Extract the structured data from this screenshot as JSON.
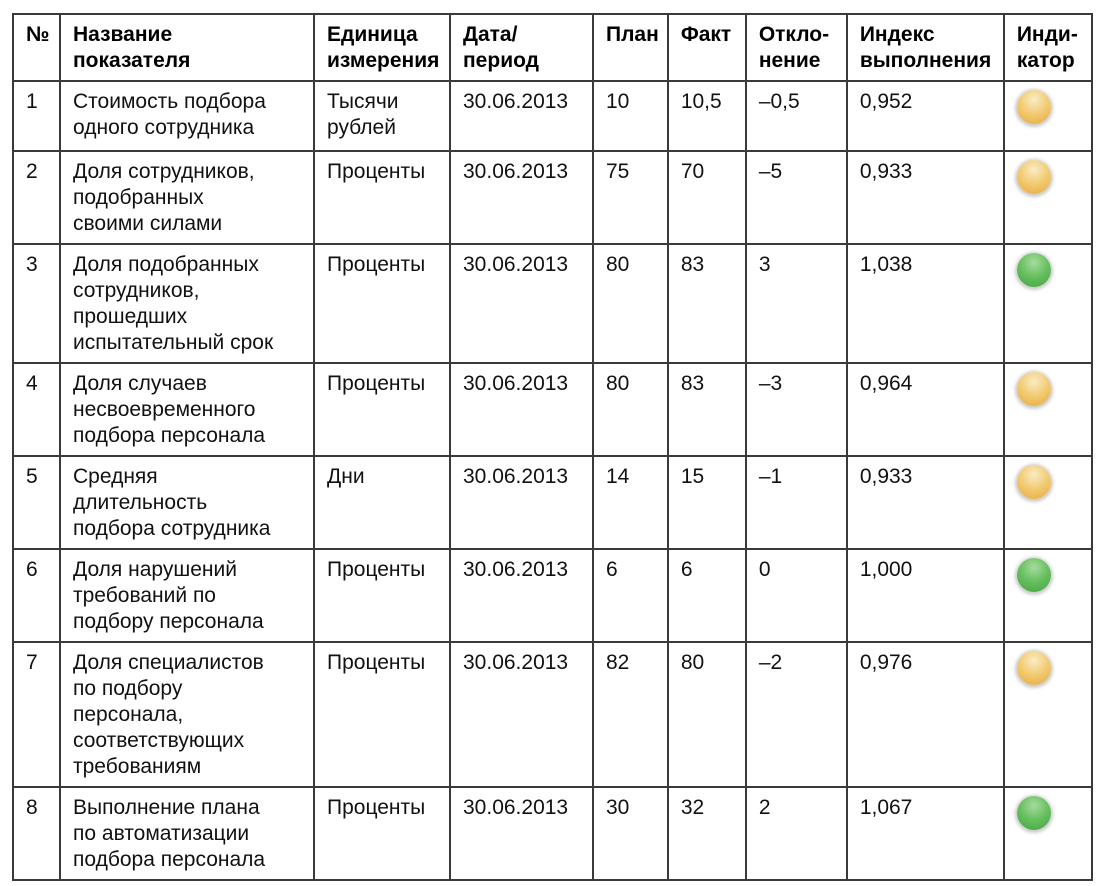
{
  "table": {
    "header": {
      "num": "№",
      "name": "Название\nпоказателя",
      "unit": "Единица\nизмерения",
      "date": "Дата/\nпериод",
      "plan": "План",
      "fact": "Факт",
      "deviation": "Откло-\nнение",
      "index": "Индекс\nвыполнения",
      "indicator": "Инди-\nкатор"
    },
    "rows": [
      {
        "num": "1",
        "name": "Стоимость подбора\nодного сотрудника",
        "unit": "Тысячи\nрублей",
        "date": "30.06.2013",
        "plan": "10",
        "fact": "10,5",
        "deviation": "–0,5",
        "index": "0,952",
        "indicator": "yellow"
      },
      {
        "num": "2",
        "name": "Доля сотрудников,\nподобранных\nсвоими силами",
        "unit": "Проценты",
        "date": "30.06.2013",
        "plan": "75",
        "fact": "70",
        "deviation": "–5",
        "index": "0,933",
        "indicator": "yellow"
      },
      {
        "num": "3",
        "name": "Доля подобранных\nсотрудников,\nпрошедших\nиспытательный срок",
        "unit": "Проценты",
        "date": "30.06.2013",
        "plan": "80",
        "fact": "83",
        "deviation": "3",
        "index": "1,038",
        "indicator": "green"
      },
      {
        "num": "4",
        "name": "Доля случаев\nнесвоевременного\nподбора персонала",
        "unit": "Проценты",
        "date": "30.06.2013",
        "plan": "80",
        "fact": "83",
        "deviation": "–3",
        "index": "0,964",
        "indicator": "yellow"
      },
      {
        "num": "5",
        "name": "Средняя\nдлительность\nподбора сотрудника",
        "unit": "Дни",
        "date": "30.06.2013",
        "plan": "14",
        "fact": "15",
        "deviation": "–1",
        "index": "0,933",
        "indicator": "yellow"
      },
      {
        "num": "6",
        "name": "Доля нарушений\nтребований по\nподбору персонала",
        "unit": "Проценты",
        "date": "30.06.2013",
        "plan": "6",
        "fact": "6",
        "deviation": "0",
        "index": "1,000",
        "indicator": "green"
      },
      {
        "num": "7",
        "name": "Доля специалистов\nпо подбору\nперсонала,\nсоответствующих\nтребованиям",
        "unit": "Проценты",
        "date": "30.06.2013",
        "plan": "82",
        "fact": "80",
        "deviation": "–2",
        "index": "0,976",
        "indicator": "yellow"
      },
      {
        "num": "8",
        "name": "Выполнение плана\nпо автоматизации\nподбора персонала",
        "unit": "Проценты",
        "date": "30.06.2013",
        "plan": "30",
        "fact": "32",
        "deviation": "2",
        "index": "1,067",
        "indicator": "green"
      }
    ]
  },
  "indicator_colors": {
    "yellow": {
      "top": "#f9ecc6",
      "mid": "#f2cb72",
      "bottom": "#e8a83c"
    },
    "green": {
      "top": "#a6db9e",
      "mid": "#67bf5f",
      "bottom": "#43a341"
    }
  }
}
